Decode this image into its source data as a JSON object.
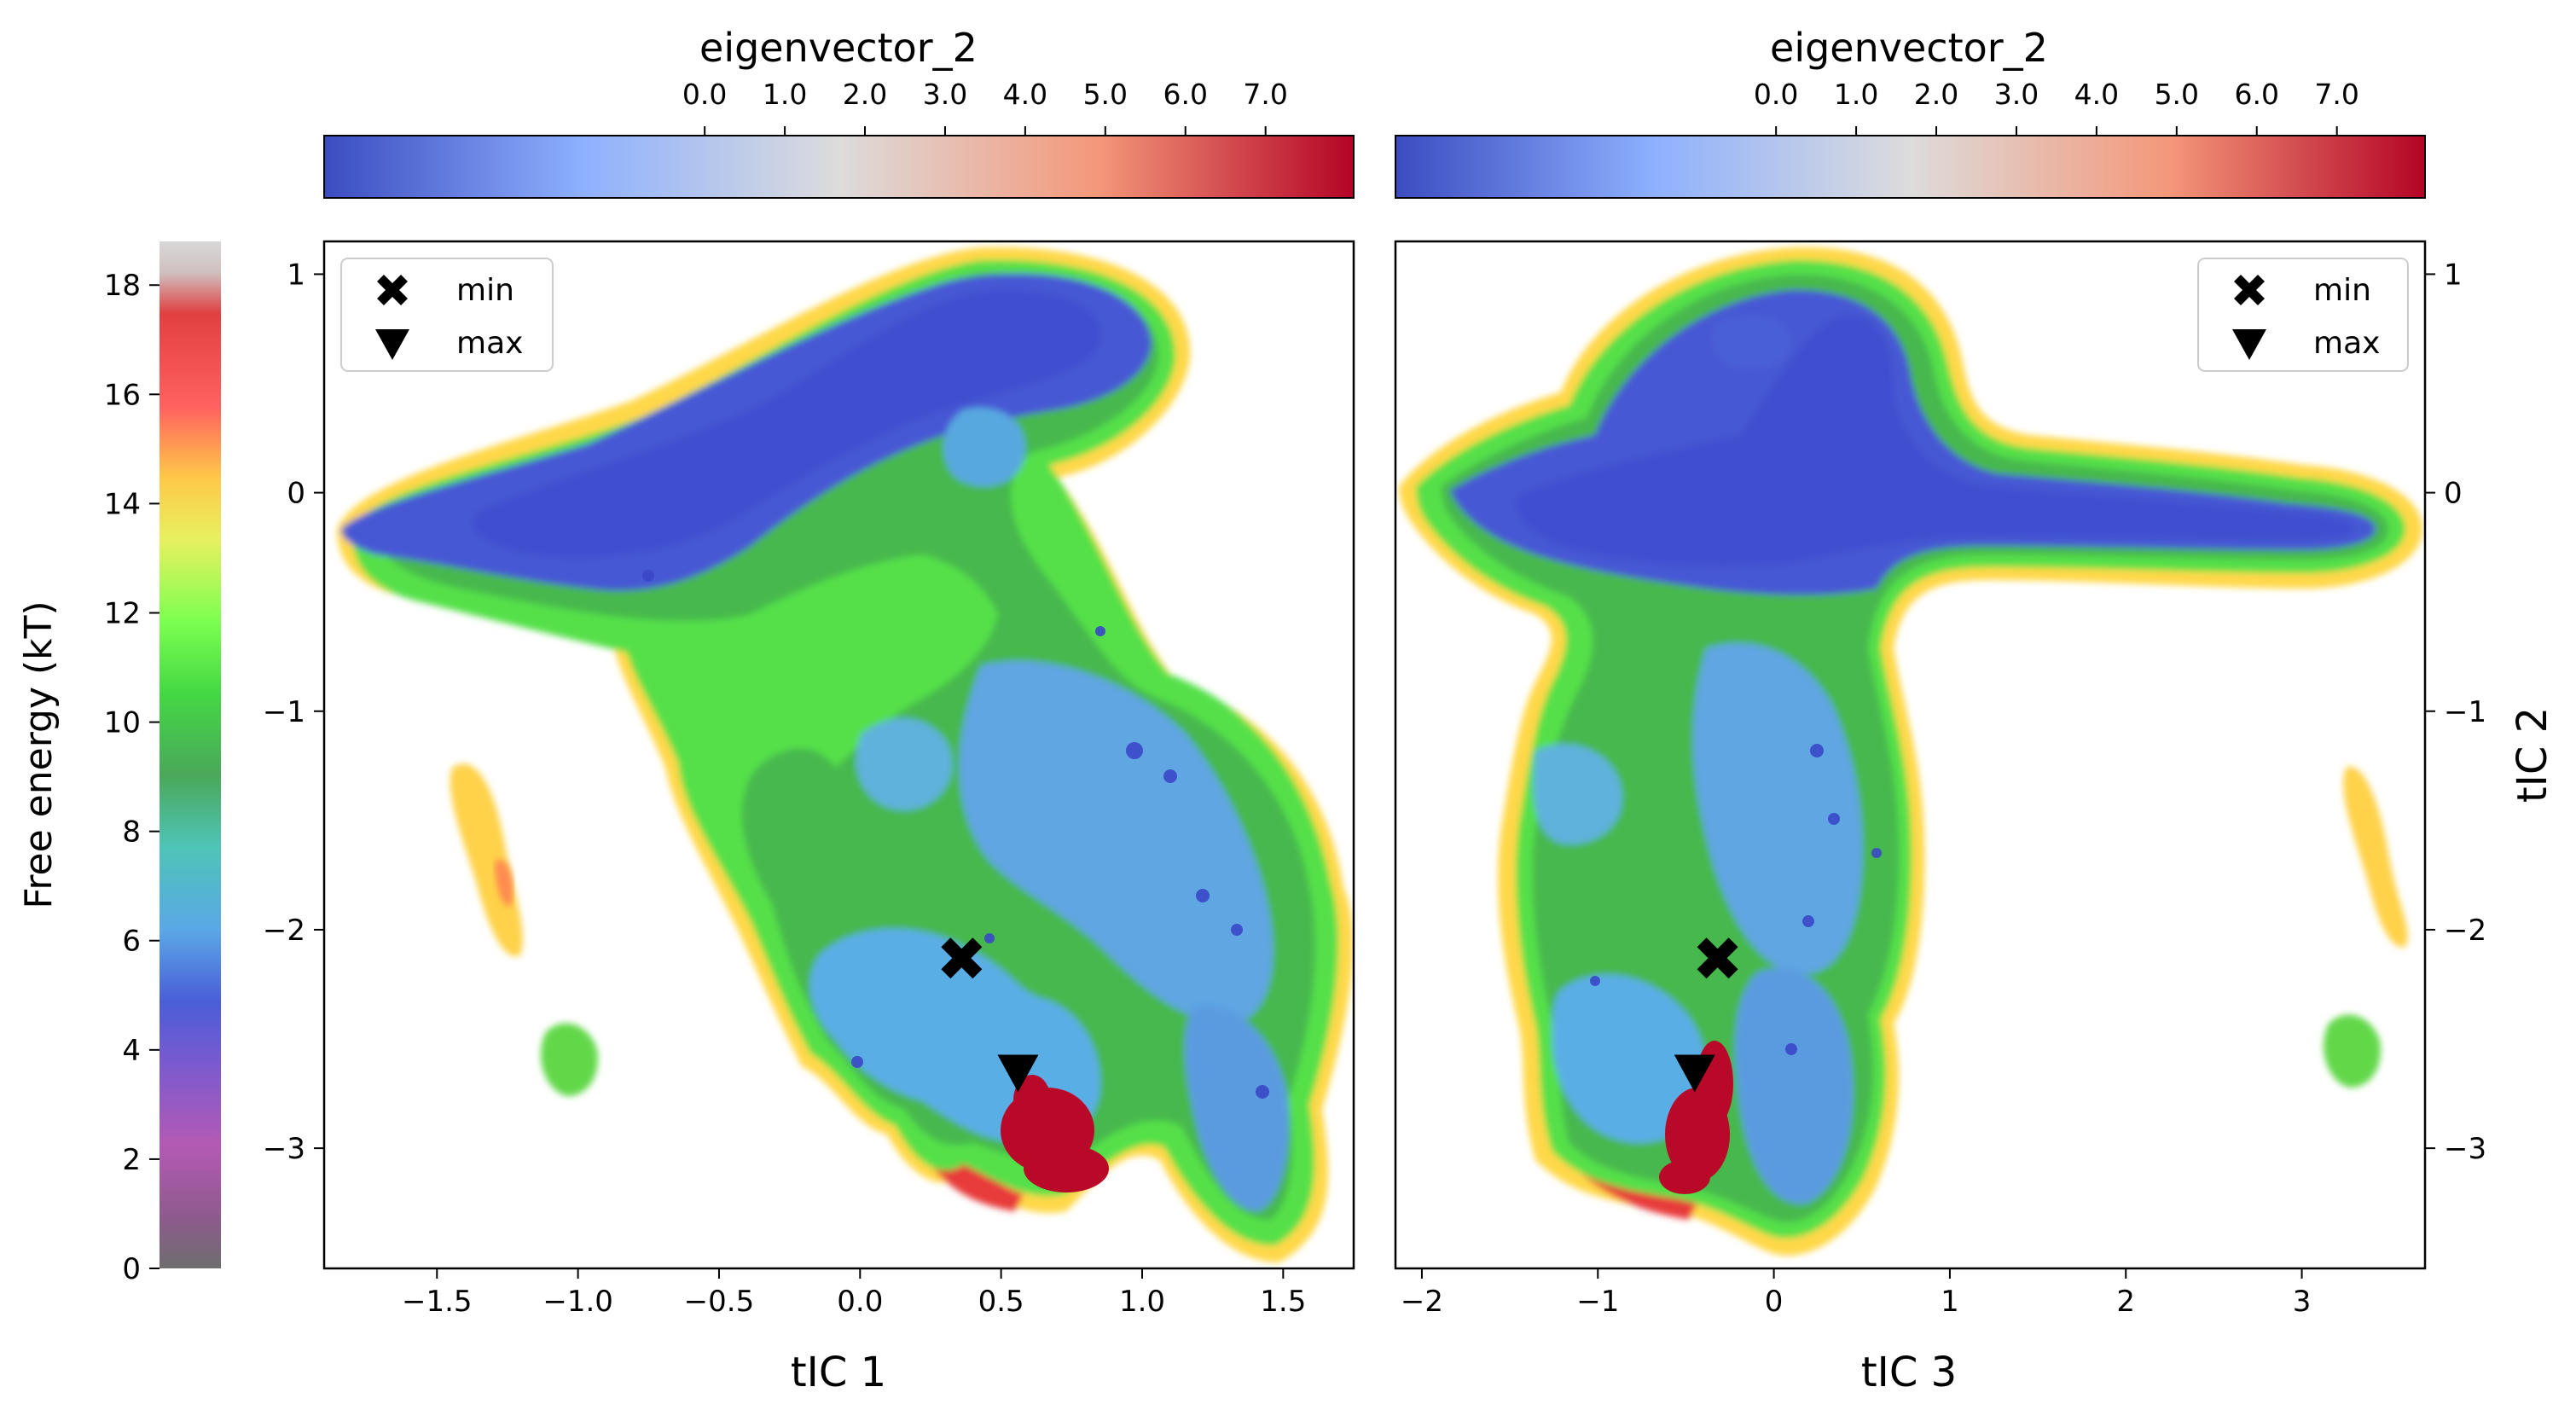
{
  "figure": {
    "colorbar": {
      "label": "Free energy (kT)",
      "ticks": [
        0,
        2,
        4,
        6,
        8,
        10,
        12,
        14,
        16,
        18
      ],
      "range": [
        0,
        18.8
      ],
      "colormap": "nipy_spectral-like (grey, purple, blue, cyan, green, yellow, orange, red)"
    },
    "eigen_colorbar_label": "eigenvector_2",
    "eigen_colorbar_ticks": [
      "0.0",
      "1.0",
      "2.0",
      "3.0",
      "4.0",
      "5.0",
      "6.0",
      "7.0"
    ],
    "eigen_colormap": [
      "#3b4cc0",
      "#8db0fe",
      "#dddcdc",
      "#f4987a",
      "#b40426"
    ]
  },
  "chart_data": [
    {
      "type": "heatmap",
      "panel": "left",
      "xlabel": "tIC 1",
      "ylabel": "",
      "xlim": [
        -1.9,
        1.75
      ],
      "ylim": [
        -3.55,
        1.15
      ],
      "xticks": [
        -1.5,
        -1.0,
        -0.5,
        0.0,
        0.5,
        1.0,
        1.5
      ],
      "yticks": [
        1,
        0,
        -1,
        -2,
        -3
      ],
      "legend": {
        "position": "top-left",
        "entries": [
          {
            "label": "min",
            "marker": "X"
          },
          {
            "label": "max",
            "marker": "triangle-down"
          }
        ]
      },
      "min_point": {
        "x": 0.36,
        "y": -2.13
      },
      "max_point": {
        "x": 0.56,
        "y": -2.65
      },
      "colorbar_label": "eigenvector_2"
    },
    {
      "type": "heatmap",
      "panel": "right",
      "xlabel": "tIC 3",
      "ylabel": "tIC 2",
      "xlim": [
        -2.15,
        3.7
      ],
      "ylim": [
        -3.55,
        1.15
      ],
      "xticks": [
        -2,
        -1,
        0,
        1,
        2,
        3
      ],
      "yticks": [
        1,
        0,
        -1,
        -2,
        -3
      ],
      "legend": {
        "position": "top-right",
        "entries": [
          {
            "label": "min",
            "marker": "X"
          },
          {
            "label": "max",
            "marker": "triangle-down"
          }
        ]
      },
      "min_point": {
        "x": -0.32,
        "y": -2.13
      },
      "max_point": {
        "x": -0.45,
        "y": -2.65
      },
      "colorbar_label": "eigenvector_2"
    }
  ]
}
